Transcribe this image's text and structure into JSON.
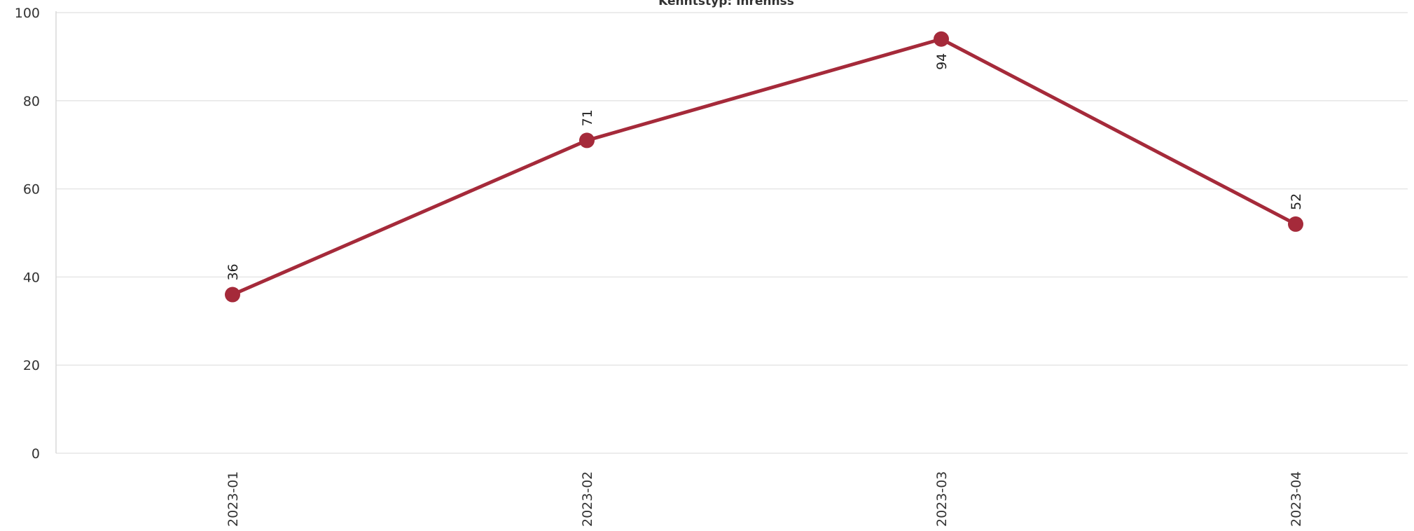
{
  "chart_data": {
    "type": "line",
    "title": "Kenntstyp: Inrennss",
    "categories": [
      "2023-01",
      "2023-02",
      "2023-03",
      "2023-04"
    ],
    "series": [
      {
        "values": [
          36,
          71,
          94,
          52
        ]
      }
    ],
    "data_labels": [
      "36",
      "71",
      "94",
      "52"
    ],
    "yticks": [
      0,
      20,
      40,
      60,
      80,
      100
    ],
    "ylim": [
      0,
      100
    ],
    "grid": true,
    "legend": "none",
    "colors": {
      "series": "#a52a3a",
      "grid": "#e6e6e6",
      "text": "#333333"
    }
  }
}
